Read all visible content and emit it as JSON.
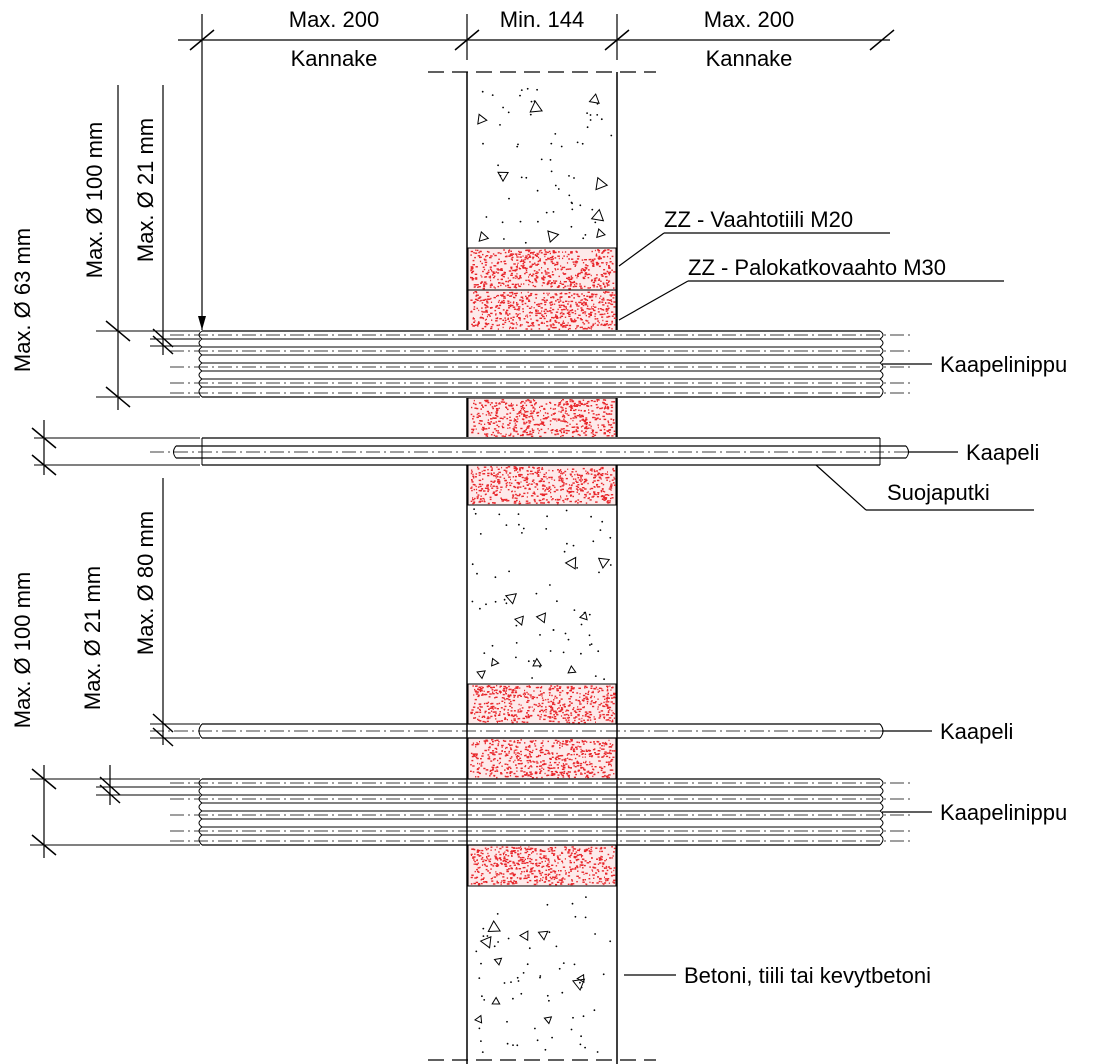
{
  "top_dimensions": {
    "left": "Max. 200",
    "center": "Min. 144",
    "right": "Max. 200",
    "left_sub": "Kannake",
    "right_sub": "Kannake"
  },
  "vertical_dimensions": {
    "upper_outer": "Max. Ø 100 mm",
    "upper_inner": "Max. Ø 21 mm",
    "upper_left": "Max. Ø 63 mm",
    "lower_right": "Max. Ø 80 mm",
    "lower_outer": "Max. Ø 100 mm",
    "lower_inner": "Max. Ø 21 mm"
  },
  "callouts": {
    "vaahtotiili": "ZZ - Vaahtotiili M20",
    "palokatko": "ZZ - Palokatkovaahto M30",
    "kaapelinippu_1": "Kaapelinippu",
    "kaapeli_1": "Kaapeli",
    "suojaputki": "Suojaputki",
    "kaapeli_2": "Kaapeli",
    "kaapelinippu_2": "Kaapelinippu",
    "betoni": "Betoni, tiili tai kevytbetoni"
  },
  "colors": {
    "foam_fill": "#fdeaea",
    "foam_dots": "#e8262b",
    "line": "#000000",
    "leader": "#000000"
  }
}
